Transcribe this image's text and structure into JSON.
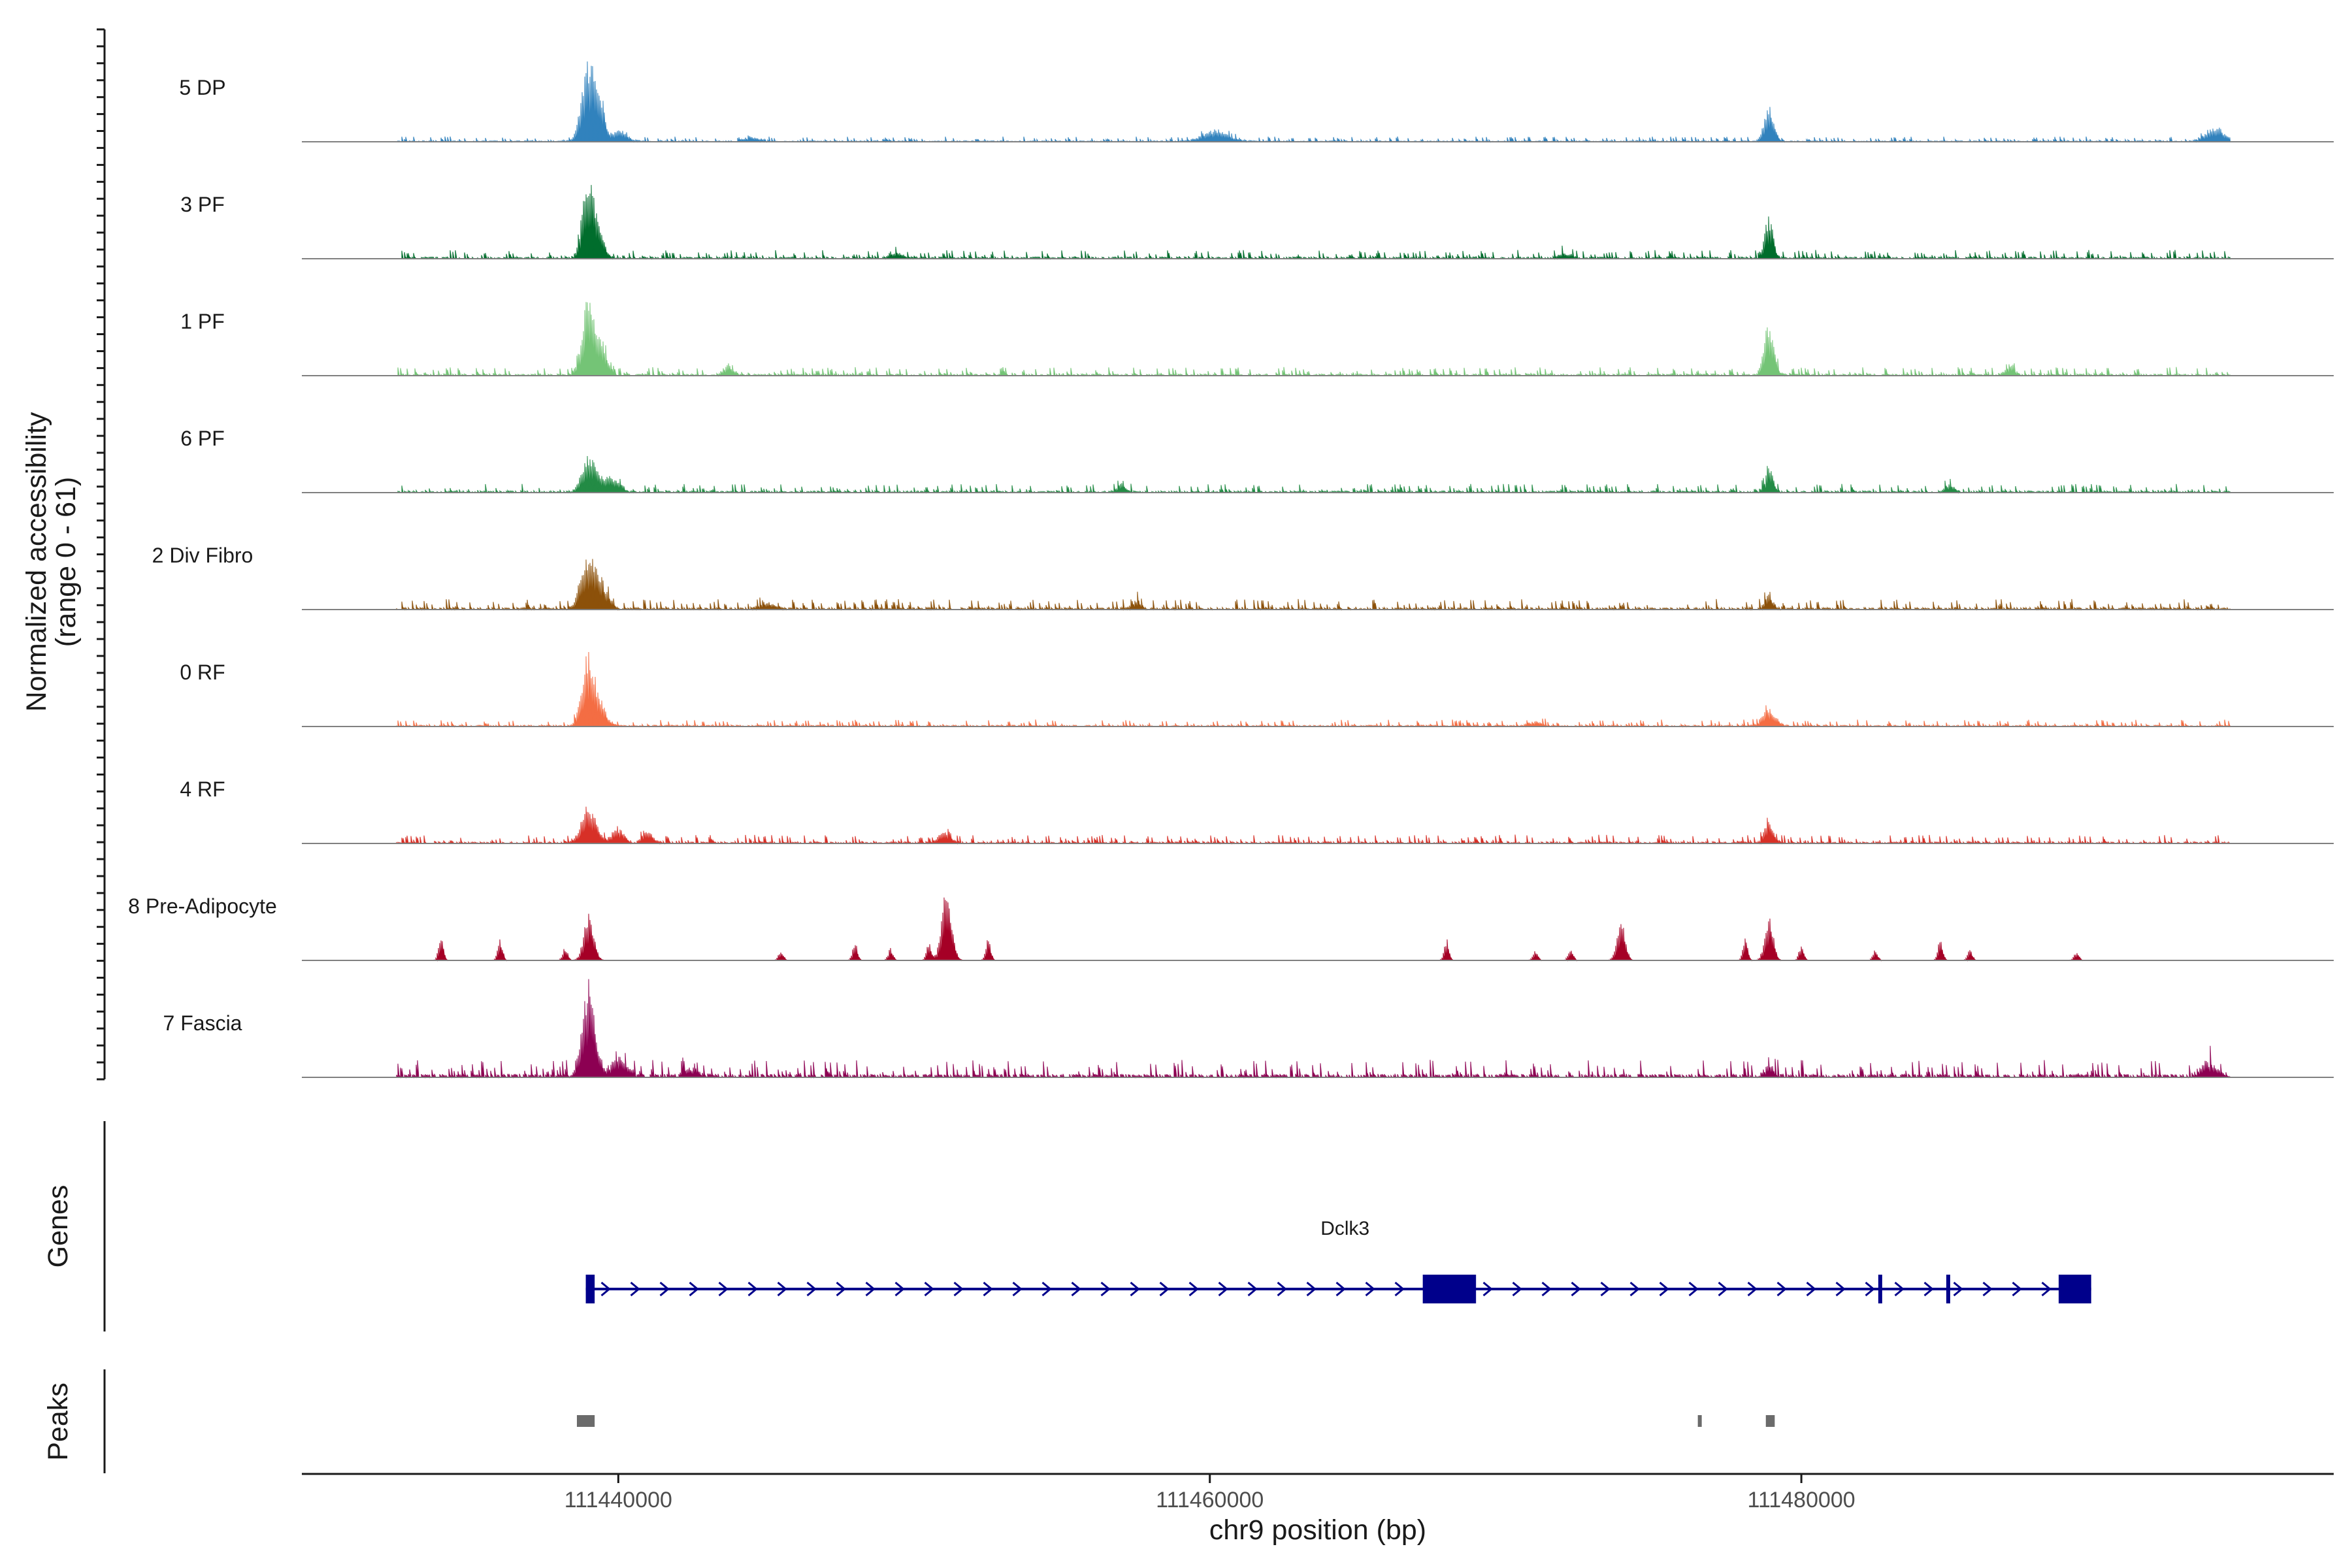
{
  "chart_data": {
    "type": "area",
    "title": "",
    "ylabel": [
      "Normalized accessibility",
      "(range 0 - 61)"
    ],
    "y_range": [
      0,
      61
    ],
    "xlabel": "chr9 position (bp)",
    "xlim": [
      111429300,
      111498000
    ],
    "x_ticks": [
      111440000,
      111460000,
      111480000
    ],
    "x_tick_labels": [
      "111440000",
      "111460000",
      "111480000"
    ],
    "track_range": [
      111432500,
      111494500
    ],
    "series": [
      {
        "name": "5 DP",
        "color": "#3182bd",
        "baseline": 1.5,
        "peaks": [
          [
            111439000,
            100,
            40
          ],
          [
            111439400,
            38,
            25
          ],
          [
            111440000,
            12,
            50
          ],
          [
            111460200,
            13,
            80
          ],
          [
            111478900,
            38,
            30
          ],
          [
            111494000,
            15,
            60
          ],
          [
            111444500,
            6,
            40
          ]
        ]
      },
      {
        "name": "3 PF",
        "color": "#006d2c",
        "baseline": 2.5,
        "peaks": [
          [
            111439000,
            105,
            35
          ],
          [
            111439400,
            22,
            30
          ],
          [
            111478900,
            48,
            25
          ],
          [
            111449400,
            6,
            40
          ],
          [
            111472000,
            6,
            40
          ]
        ]
      },
      {
        "name": "1 PF",
        "color": "#74c476",
        "baseline": 2.5,
        "peaks": [
          [
            111439000,
            95,
            40
          ],
          [
            111439500,
            30,
            30
          ],
          [
            111443700,
            12,
            30
          ],
          [
            111478900,
            58,
            30
          ],
          [
            111487000,
            10,
            30
          ]
        ]
      },
      {
        "name": "6 PF",
        "color": "#238b45",
        "baseline": 2.5,
        "peaks": [
          [
            111439000,
            45,
            40
          ],
          [
            111439600,
            18,
            40
          ],
          [
            111440000,
            10,
            30
          ],
          [
            111478900,
            25,
            25
          ],
          [
            111457000,
            10,
            25
          ],
          [
            111485000,
            9,
            30
          ]
        ]
      },
      {
        "name": "2 Div Fibro",
        "color": "#8c510a",
        "baseline": 3,
        "peaks": [
          [
            111439000,
            62,
            45
          ],
          [
            111439500,
            20,
            40
          ],
          [
            111445000,
            8,
            40
          ],
          [
            111457500,
            10,
            30
          ],
          [
            111478900,
            16,
            25
          ]
        ]
      },
      {
        "name": "0 RF",
        "color": "#f46d43",
        "baseline": 2,
        "peaks": [
          [
            111439000,
            85,
            40
          ],
          [
            111439500,
            15,
            35
          ],
          [
            111478900,
            20,
            40
          ],
          [
            111471000,
            6,
            40
          ]
        ]
      },
      {
        "name": "4 RF",
        "color": "#d73027",
        "baseline": 2.5,
        "peaks": [
          [
            111439000,
            42,
            45
          ],
          [
            111440000,
            18,
            35
          ],
          [
            111441000,
            14,
            30
          ],
          [
            111451000,
            12,
            40
          ],
          [
            111478900,
            28,
            25
          ]
        ]
      },
      {
        "name": "8 Pre-Adipocyte",
        "color": "#a50026",
        "baseline": 0,
        "peaks": [
          [
            111439000,
            55,
            30
          ],
          [
            111434000,
            28,
            15
          ],
          [
            111436000,
            25,
            15
          ],
          [
            111438200,
            15,
            15
          ],
          [
            111445500,
            12,
            15
          ],
          [
            111448000,
            22,
            15
          ],
          [
            111449200,
            14,
            15
          ],
          [
            111450500,
            22,
            15
          ],
          [
            111451100,
            90,
            30
          ],
          [
            111452500,
            28,
            15
          ],
          [
            111468000,
            25,
            15
          ],
          [
            111471000,
            12,
            15
          ],
          [
            111472200,
            14,
            15
          ],
          [
            111473900,
            50,
            25
          ],
          [
            111478100,
            25,
            15
          ],
          [
            111478900,
            55,
            25
          ],
          [
            111480000,
            18,
            15
          ],
          [
            111482500,
            12,
            15
          ],
          [
            111484700,
            25,
            15
          ],
          [
            111485700,
            12,
            15
          ],
          [
            111489300,
            10,
            15
          ]
        ]
      },
      {
        "name": "7 Fascia",
        "color": "#8c0052",
        "baseline": 5,
        "peaks": [
          [
            111439000,
            98,
            40
          ],
          [
            111440000,
            25,
            45
          ],
          [
            111478900,
            12,
            30
          ],
          [
            111493800,
            18,
            50
          ],
          [
            111442500,
            10,
            40
          ]
        ]
      }
    ],
    "gene_track": {
      "title": "Genes",
      "gene": {
        "name": "Dclk3",
        "start": 111438900,
        "end": 111489800,
        "strand": "+",
        "exons": [
          [
            111438900,
            111439200
          ],
          [
            111467200,
            111469000
          ],
          [
            111482600,
            111482700
          ],
          [
            111484900,
            111485000
          ],
          [
            111488700,
            111489800
          ]
        ]
      }
    },
    "peak_track": {
      "title": "Peaks",
      "peaks": [
        [
          111438600,
          111439200
        ],
        [
          111476500,
          111476600
        ],
        [
          111478800,
          111479100
        ]
      ]
    }
  }
}
